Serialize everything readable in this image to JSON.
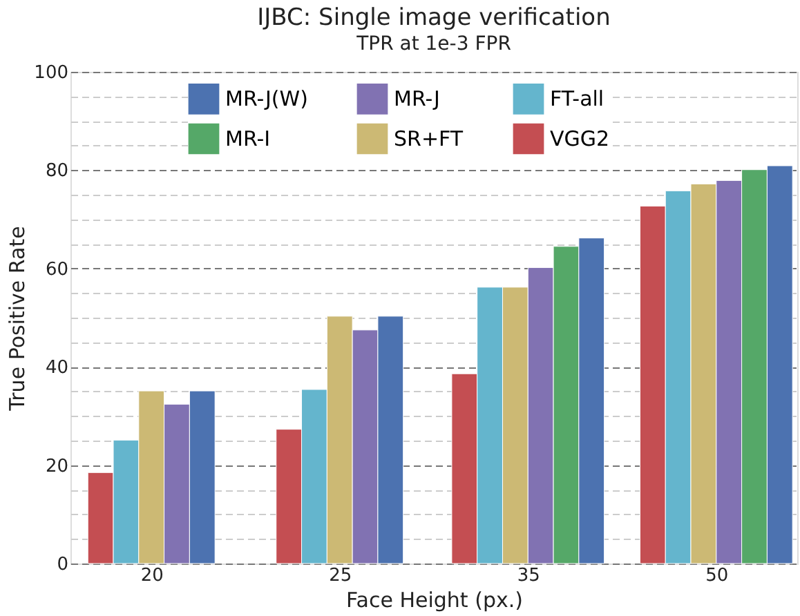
{
  "chart_data": {
    "type": "bar",
    "title": "IJBC: Single image verification",
    "subtitle": "TPR at 1e-3 FPR",
    "xlabel": "Face Height (px.)",
    "ylabel": "True Positive Rate",
    "categories": [
      "20",
      "25",
      "35",
      "50"
    ],
    "series": [
      {
        "name": "VGG2",
        "color": "#c44e52",
        "values": [
          18.5,
          27.3,
          38.6,
          72.7
        ]
      },
      {
        "name": "FT-all",
        "color": "#64b5cd",
        "values": [
          25.1,
          35.4,
          56.2,
          75.8
        ]
      },
      {
        "name": "SR+FT",
        "color": "#ccb974",
        "values": [
          35.1,
          50.3,
          56.2,
          77.2
        ]
      },
      {
        "name": "MR-J",
        "color": "#8172b2",
        "values": [
          32.4,
          47.5,
          60.2,
          77.9
        ]
      },
      {
        "name": "MR-I",
        "color": "#55a868",
        "values": [
          null,
          null,
          64.5,
          80.1
        ]
      },
      {
        "name": "MR-J(W)",
        "color": "#4c72b0",
        "values": [
          35.1,
          50.3,
          66.2,
          80.9
        ]
      }
    ],
    "ylim": [
      0,
      100
    ],
    "yticks": [
      0,
      {
        "value": 5,
        "label": null
      },
      {
        "value": 10,
        "label": null
      },
      {
        "value": 15,
        "label": null
      },
      20,
      {
        "value": 25,
        "label": null
      },
      {
        "value": 30,
        "label": null
      },
      {
        "value": 35,
        "label": null
      },
      40,
      {
        "value": 45,
        "label": null
      },
      {
        "value": 50,
        "label": null
      },
      {
        "value": 55,
        "label": null
      },
      60,
      {
        "value": 65,
        "label": null
      },
      {
        "value": 70,
        "label": null
      },
      {
        "value": 75,
        "label": null
      },
      80,
      {
        "value": 85,
        "label": null
      },
      {
        "value": 90,
        "label": null
      },
      {
        "value": 95,
        "label": null
      },
      100
    ],
    "grid": "y",
    "legend": "top"
  }
}
